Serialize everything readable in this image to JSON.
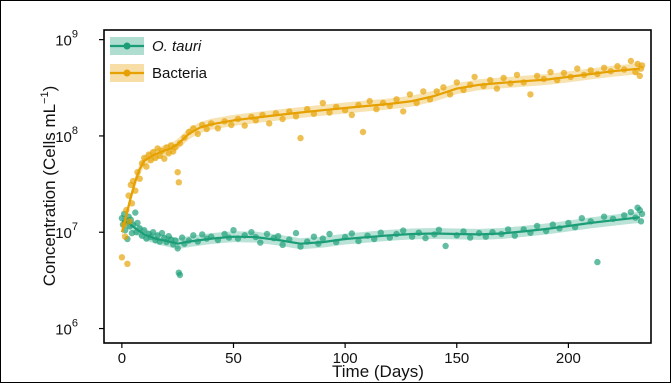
{
  "chart_data": {
    "type": "scatter",
    "title": "",
    "xlabel": "Time (Days)",
    "ylabel": "Concentration (Cells mL⁻¹)",
    "ylabel_base": "Concentration (Cells mL",
    "ylabel_exp": "−1",
    "ylabel_close": ")",
    "x_scale": "linear",
    "y_scale": "log10",
    "xlim": [
      -8,
      237
    ],
    "ylim_log10": [
      5.85,
      9.1
    ],
    "x_ticks": [
      0,
      50,
      100,
      150,
      200
    ],
    "x_tick_labels": [
      "0",
      "50",
      "100",
      "150",
      "200"
    ],
    "y_ticks_log10": [
      6,
      7,
      8,
      9
    ],
    "y_tick_base": "10",
    "y_tick_exps": [
      "6",
      "7",
      "8",
      "9"
    ],
    "grid": false,
    "legend_position": "top-left",
    "series": [
      {
        "name": "O. tauri",
        "italic": true,
        "color": "#1b9e77",
        "smooth_x": [
          0,
          3,
          6,
          10,
          15,
          20,
          25,
          30,
          40,
          50,
          60,
          70,
          80,
          90,
          100,
          110,
          120,
          130,
          140,
          150,
          160,
          170,
          180,
          190,
          200,
          210,
          220,
          232
        ],
        "smooth_y": [
          13000000.0,
          12500000.0,
          11000000.0,
          9500000.0,
          8600000.0,
          8100000.0,
          7600000.0,
          8000000.0,
          8600000.0,
          9000000.0,
          8900000.0,
          8300000.0,
          7600000.0,
          7900000.0,
          8500000.0,
          8900000.0,
          9300000.0,
          9600000.0,
          9700000.0,
          9600000.0,
          9500000.0,
          9700000.0,
          10200000.0,
          10800000.0,
          11600000.0,
          12500000.0,
          13300000.0,
          14300000.0
        ],
        "points": [
          [
            0,
            14000000.0
          ],
          [
            0.5,
            12000000.0
          ],
          [
            1,
            15500000.0
          ],
          [
            1.5,
            10500000.0
          ],
          [
            2,
            13000000.0
          ],
          [
            2.5,
            8500000.0
          ],
          [
            3,
            14500000.0
          ],
          [
            3.5,
            11500000.0
          ],
          [
            4,
            13500000.0
          ],
          [
            4.5,
            9800000.0
          ],
          [
            5,
            12000000.0
          ],
          [
            6,
            16000000.0
          ],
          [
            6.5,
            10000000.0
          ],
          [
            7,
            12500000.0
          ],
          [
            8,
            11000000.0
          ],
          [
            9,
            9200000.0
          ],
          [
            10,
            10500000.0
          ],
          [
            11,
            8600000.0
          ],
          [
            12,
            9600000.0
          ],
          [
            13,
            8900000.0
          ],
          [
            14,
            10000000.0
          ],
          [
            15,
            8300000.0
          ],
          [
            16,
            9300000.0
          ],
          [
            17,
            8000000.0
          ],
          [
            18,
            9800000.0
          ],
          [
            19,
            8700000.0
          ],
          [
            20,
            7900000.0
          ],
          [
            21,
            9100000.0
          ],
          [
            22,
            8400000.0
          ],
          [
            23,
            7500000.0
          ],
          [
            24,
            8200000.0
          ],
          [
            25,
            6800000.0
          ],
          [
            25.5,
            3800000.0
          ],
          [
            26,
            3600000.0
          ],
          [
            27,
            8800000.0
          ],
          [
            28,
            7600000.0
          ],
          [
            30,
            8200000.0
          ],
          [
            32,
            9300000.0
          ],
          [
            34,
            8000000.0
          ],
          [
            36,
            9500000.0
          ],
          [
            38,
            8600000.0
          ],
          [
            40,
            9000000.0
          ],
          [
            43,
            8300000.0
          ],
          [
            46,
            9600000.0
          ],
          [
            48,
            8800000.0
          ],
          [
            50,
            10500000.0
          ],
          [
            52,
            8600000.0
          ],
          [
            55,
            9300000.0
          ],
          [
            58,
            10000000.0
          ],
          [
            60,
            8900000.0
          ],
          [
            62,
            7800000.0
          ],
          [
            65,
            9600000.0
          ],
          [
            68,
            8700000.0
          ],
          [
            70,
            9100000.0
          ],
          [
            72,
            7400000.0
          ],
          [
            75,
            8400000.0
          ],
          [
            78,
            9800000.0
          ],
          [
            80,
            7100000.0
          ],
          [
            83,
            8000000.0
          ],
          [
            86,
            9000000.0
          ],
          [
            88,
            7600000.0
          ],
          [
            90,
            8600000.0
          ],
          [
            93,
            9600000.0
          ],
          [
            96,
            7900000.0
          ],
          [
            100,
            8900000.0
          ],
          [
            103,
            9700000.0
          ],
          [
            106,
            8100000.0
          ],
          [
            110,
            9200000.0
          ],
          [
            113,
            8500000.0
          ],
          [
            116,
            9900000.0
          ],
          [
            120,
            8800000.0
          ],
          [
            123,
            9600000.0
          ],
          [
            126,
            10400000.0
          ],
          [
            130,
            9000000.0
          ],
          [
            133,
            9900000.0
          ],
          [
            136,
            8700000.0
          ],
          [
            140,
            9500000.0
          ],
          [
            142,
            10600000.0
          ],
          [
            145,
            7200000.0
          ],
          [
            150,
            9300000.0
          ],
          [
            153,
            10200000.0
          ],
          [
            156,
            8800000.0
          ],
          [
            160,
            9800000.0
          ],
          [
            163,
            9000000.0
          ],
          [
            166,
            10000000.0
          ],
          [
            170,
            9600000.0
          ],
          [
            173,
            10700000.0
          ],
          [
            176,
            9200000.0
          ],
          [
            180,
            10700000.0
          ],
          [
            183,
            9900000.0
          ],
          [
            186,
            11600000.0
          ],
          [
            190,
            10300000.0
          ],
          [
            193,
            12000000.0
          ],
          [
            196,
            11000000.0
          ],
          [
            200,
            12500000.0
          ],
          [
            203,
            11300000.0
          ],
          [
            206,
            14000000.0
          ],
          [
            210,
            13000000.0
          ],
          [
            213,
            4900000.0
          ],
          [
            216,
            14500000.0
          ],
          [
            220,
            13800000.0
          ],
          [
            225,
            15000000.0
          ],
          [
            228,
            16200000.0
          ],
          [
            230,
            14200000.0
          ],
          [
            231,
            18000000.0
          ],
          [
            232,
            17000000.0
          ],
          [
            232.5,
            13000000.0
          ],
          [
            233,
            15500000.0
          ]
        ]
      },
      {
        "name": "Bacteria",
        "italic": false,
        "color": "#e6a000",
        "smooth_x": [
          0,
          2,
          4,
          6,
          8,
          10,
          14,
          18,
          22,
          25,
          30,
          35,
          40,
          50,
          60,
          70,
          80,
          90,
          100,
          110,
          120,
          130,
          140,
          150,
          160,
          170,
          180,
          190,
          200,
          210,
          220,
          232
        ],
        "smooth_y": [
          10000000.0,
          15000000.0,
          23000000.0,
          34000000.0,
          45000000.0,
          55000000.0,
          63000000.0,
          69000000.0,
          74000000.0,
          82000000.0,
          105000000.0,
          122000000.0,
          132000000.0,
          145000000.0,
          155000000.0,
          165000000.0,
          175000000.0,
          185000000.0,
          195000000.0,
          205000000.0,
          215000000.0,
          230000000.0,
          260000000.0,
          310000000.0,
          340000000.0,
          355000000.0,
          370000000.0,
          385000000.0,
          410000000.0,
          440000000.0,
          470000000.0,
          500000000.0
        ],
        "points": [
          [
            0,
            5500000.0
          ],
          [
            1,
            12000000.0
          ],
          [
            1.5,
            9000000.0
          ],
          [
            2,
            17000000.0
          ],
          [
            2.5,
            4700000.0
          ],
          [
            3,
            24000000.0
          ],
          [
            3.5,
            13000000.0
          ],
          [
            4,
            31000000.0
          ],
          [
            4.5,
            20000000.0
          ],
          [
            5,
            34000000.0
          ],
          [
            6,
            27000000.0
          ],
          [
            7,
            42000000.0
          ],
          [
            8,
            36000000.0
          ],
          [
            9,
            52000000.0
          ],
          [
            10,
            59000000.0
          ],
          [
            11,
            48000000.0
          ],
          [
            12,
            64000000.0
          ],
          [
            13,
            56000000.0
          ],
          [
            14,
            68000000.0
          ],
          [
            15,
            59000000.0
          ],
          [
            16,
            74000000.0
          ],
          [
            17,
            62000000.0
          ],
          [
            18,
            70000000.0
          ],
          [
            19,
            58000000.0
          ],
          [
            20,
            76000000.0
          ],
          [
            21,
            66000000.0
          ],
          [
            22,
            80000000.0
          ],
          [
            23,
            69000000.0
          ],
          [
            24,
            77000000.0
          ],
          [
            25,
            42000000.0
          ],
          [
            25.5,
            33000000.0
          ],
          [
            26,
            84000000.0
          ],
          [
            28,
            96000000.0
          ],
          [
            30,
            110000000.0
          ],
          [
            32,
            120000000.0
          ],
          [
            34,
            105000000.0
          ],
          [
            36,
            130000000.0
          ],
          [
            38,
            118000000.0
          ],
          [
            40,
            135000000.0
          ],
          [
            43,
            120000000.0
          ],
          [
            46,
            142000000.0
          ],
          [
            49,
            130000000.0
          ],
          [
            52,
            150000000.0
          ],
          [
            55,
            128000000.0
          ],
          [
            58,
            158000000.0
          ],
          [
            60,
            145000000.0
          ],
          [
            63,
            165000000.0
          ],
          [
            66,
            135000000.0
          ],
          [
            69,
            172000000.0
          ],
          [
            72,
            150000000.0
          ],
          [
            75,
            180000000.0
          ],
          [
            78,
            160000000.0
          ],
          [
            80,
            95000000.0
          ],
          [
            83,
            190000000.0
          ],
          [
            86,
            170000000.0
          ],
          [
            90,
            220000000.0
          ],
          [
            93,
            175000000.0
          ],
          [
            96,
            200000000.0
          ],
          [
            100,
            185000000.0
          ],
          [
            103,
            165000000.0
          ],
          [
            106,
            210000000.0
          ],
          [
            108,
            110000000.0
          ],
          [
            111,
            230000000.0
          ],
          [
            114,
            190000000.0
          ],
          [
            117,
            220000000.0
          ],
          [
            120,
            205000000.0
          ],
          [
            123,
            240000000.0
          ],
          [
            126,
            180000000.0
          ],
          [
            129,
            270000000.0
          ],
          [
            132,
            220000000.0
          ],
          [
            135,
            290000000.0
          ],
          [
            138,
            240000000.0
          ],
          [
            141,
            290000000.0
          ],
          [
            144,
            320000000.0
          ],
          [
            147,
            270000000.0
          ],
          [
            150,
            360000000.0
          ],
          [
            153,
            300000000.0
          ],
          [
            156,
            340000000.0
          ],
          [
            158,
            410000000.0
          ],
          [
            162,
            330000000.0
          ],
          [
            165,
            380000000.0
          ],
          [
            168,
            310000000.0
          ],
          [
            171,
            400000000.0
          ],
          [
            174,
            350000000.0
          ],
          [
            177,
            430000000.0
          ],
          [
            180,
            360000000.0
          ],
          [
            183,
            270000000.0
          ],
          [
            186,
            420000000.0
          ],
          [
            189,
            390000000.0
          ],
          [
            192,
            460000000.0
          ],
          [
            195,
            380000000.0
          ],
          [
            198,
            450000000.0
          ],
          [
            201,
            410000000.0
          ],
          [
            204,
            500000000.0
          ],
          [
            207,
            430000000.0
          ],
          [
            210,
            480000000.0
          ],
          [
            213,
            440000000.0
          ],
          [
            216,
            510000000.0
          ],
          [
            219,
            470000000.0
          ],
          [
            222,
            530000000.0
          ],
          [
            225,
            490000000.0
          ],
          [
            228,
            600000000.0
          ],
          [
            230,
            460000000.0
          ],
          [
            231,
            560000000.0
          ],
          [
            232,
            420000000.0
          ],
          [
            232.5,
            500000000.0
          ],
          [
            233,
            540000000.0
          ]
        ]
      }
    ]
  }
}
